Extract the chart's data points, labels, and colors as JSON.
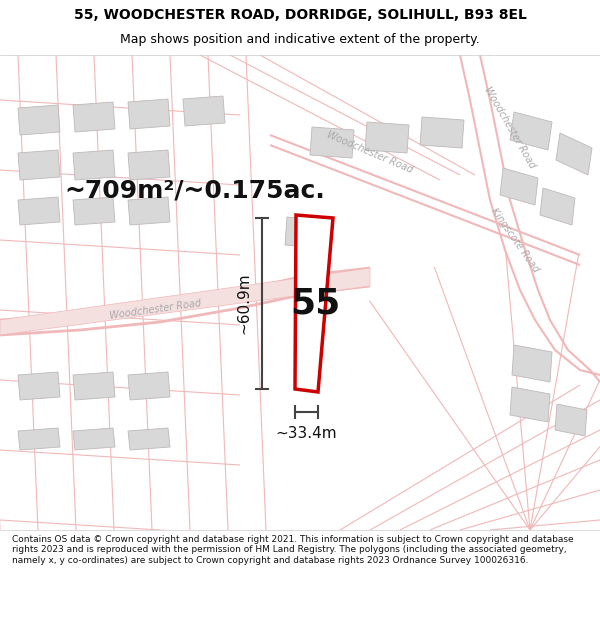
{
  "title": "55, WOODCHESTER ROAD, DORRIDGE, SOLIHULL, B93 8EL",
  "subtitle": "Map shows position and indicative extent of the property.",
  "footer": "Contains OS data © Crown copyright and database right 2021. This information is subject to Crown copyright and database rights 2023 and is reproduced with the permission of HM Land Registry. The polygons (including the associated geometry, namely x, y co-ordinates) are subject to Crown copyright and database rights 2023 Ordnance Survey 100026316.",
  "area_label": "~709m²/~0.175ac.",
  "width_label": "~33.4m",
  "height_label": "~60.9m",
  "plot_number": "55",
  "map_bg": "#fafafa",
  "road_color": "#f0b8b8",
  "building_color": "#d8d8d8",
  "building_ec": "#c0b8b8",
  "plot_outline_color": "#cc0000",
  "plot_fill_color": "#ffffff",
  "title_color": "#000000",
  "dim_line_color": "#444444",
  "road_label_color": "#aaaaaa",
  "area_label_fontsize": 18,
  "plot_number_fontsize": 26,
  "dim_label_fontsize": 11,
  "road_label_fontsize": 7
}
